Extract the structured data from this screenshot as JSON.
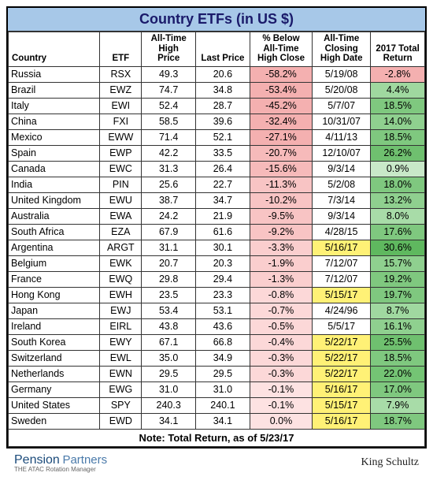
{
  "title": "Country ETFs (in US $)",
  "columns": [
    "Country",
    "ETF",
    "All-Time High Price",
    "Last Price",
    "% Below All-Time High Close",
    "All-Time Closing High Date",
    "2017 Total Return"
  ],
  "col_widths": [
    "22%",
    "10%",
    "13%",
    "13%",
    "15%",
    "14%",
    "13%"
  ],
  "header_bg": "#ffffff",
  "rows": [
    {
      "country": "Russia",
      "etf": "RSX",
      "high": "49.3",
      "last": "20.6",
      "pct": "-58.2%",
      "pct_bg": "#f4b0b0",
      "date": "5/19/08",
      "date_bg": "#ffffff",
      "ret": "-2.8%",
      "ret_bg": "#f4b0b0"
    },
    {
      "country": "Brazil",
      "etf": "EWZ",
      "high": "74.7",
      "last": "34.8",
      "pct": "-53.4%",
      "pct_bg": "#f4b0b0",
      "date": "5/20/08",
      "date_bg": "#ffffff",
      "ret": "4.4%",
      "ret_bg": "#9fd89f"
    },
    {
      "country": "Italy",
      "etf": "EWI",
      "high": "52.4",
      "last": "28.7",
      "pct": "-45.2%",
      "pct_bg": "#f4b0b0",
      "date": "5/7/07",
      "date_bg": "#ffffff",
      "ret": "18.5%",
      "ret_bg": "#7fc87f"
    },
    {
      "country": "China",
      "etf": "FXI",
      "high": "58.5",
      "last": "39.6",
      "pct": "-32.4%",
      "pct_bg": "#f4b0b0",
      "date": "10/31/07",
      "date_bg": "#ffffff",
      "ret": "14.0%",
      "ret_bg": "#8fd08f"
    },
    {
      "country": "Mexico",
      "etf": "EWW",
      "high": "71.4",
      "last": "52.1",
      "pct": "-27.1%",
      "pct_bg": "#f4b0b0",
      "date": "4/11/13",
      "date_bg": "#ffffff",
      "ret": "18.5%",
      "ret_bg": "#7fc87f"
    },
    {
      "country": "Spain",
      "etf": "EWP",
      "high": "42.2",
      "last": "33.5",
      "pct": "-20.7%",
      "pct_bg": "#f6baba",
      "date": "12/10/07",
      "date_bg": "#ffffff",
      "ret": "26.2%",
      "ret_bg": "#6fc06f"
    },
    {
      "country": "Canada",
      "etf": "EWC",
      "high": "31.3",
      "last": "26.4",
      "pct": "-15.6%",
      "pct_bg": "#f6baba",
      "date": "9/3/14",
      "date_bg": "#ffffff",
      "ret": "0.9%",
      "ret_bg": "#c8e8c8"
    },
    {
      "country": "India",
      "etf": "PIN",
      "high": "25.6",
      "last": "22.7",
      "pct": "-11.3%",
      "pct_bg": "#f8c4c4",
      "date": "5/2/08",
      "date_bg": "#ffffff",
      "ret": "18.0%",
      "ret_bg": "#7fc87f"
    },
    {
      "country": "United Kingdom",
      "etf": "EWU",
      "high": "38.7",
      "last": "34.7",
      "pct": "-10.2%",
      "pct_bg": "#f8c4c4",
      "date": "7/3/14",
      "date_bg": "#ffffff",
      "ret": "13.2%",
      "ret_bg": "#8fd08f"
    },
    {
      "country": "Australia",
      "etf": "EWA",
      "high": "24.2",
      "last": "21.9",
      "pct": "-9.5%",
      "pct_bg": "#f8c4c4",
      "date": "9/3/14",
      "date_bg": "#ffffff",
      "ret": "8.0%",
      "ret_bg": "#a8dca8"
    },
    {
      "country": "South Africa",
      "etf": "EZA",
      "high": "67.9",
      "last": "61.6",
      "pct": "-9.2%",
      "pct_bg": "#f8c4c4",
      "date": "4/28/15",
      "date_bg": "#ffffff",
      "ret": "17.6%",
      "ret_bg": "#7fc87f"
    },
    {
      "country": "Argentina",
      "etf": "ARGT",
      "high": "31.1",
      "last": "30.1",
      "pct": "-3.3%",
      "pct_bg": "#facece",
      "date": "5/16/17",
      "date_bg": "#fff176",
      "ret": "30.6%",
      "ret_bg": "#5fb85f"
    },
    {
      "country": "Belgium",
      "etf": "EWK",
      "high": "20.7",
      "last": "20.3",
      "pct": "-1.9%",
      "pct_bg": "#facece",
      "date": "7/12/07",
      "date_bg": "#ffffff",
      "ret": "15.7%",
      "ret_bg": "#8fd08f"
    },
    {
      "country": "France",
      "etf": "EWQ",
      "high": "29.8",
      "last": "29.4",
      "pct": "-1.3%",
      "pct_bg": "#facece",
      "date": "7/12/07",
      "date_bg": "#ffffff",
      "ret": "19.2%",
      "ret_bg": "#7fc87f"
    },
    {
      "country": "Hong Kong",
      "etf": "EWH",
      "high": "23.5",
      "last": "23.3",
      "pct": "-0.8%",
      "pct_bg": "#fcd8d8",
      "date": "5/15/17",
      "date_bg": "#fff176",
      "ret": "19.7%",
      "ret_bg": "#7fc87f"
    },
    {
      "country": "Japan",
      "etf": "EWJ",
      "high": "53.4",
      "last": "53.1",
      "pct": "-0.7%",
      "pct_bg": "#fcd8d8",
      "date": "4/24/96",
      "date_bg": "#ffffff",
      "ret": "8.7%",
      "ret_bg": "#a0d8a0"
    },
    {
      "country": "Ireland",
      "etf": "EIRL",
      "high": "43.8",
      "last": "43.6",
      "pct": "-0.5%",
      "pct_bg": "#fcd8d8",
      "date": "5/5/17",
      "date_bg": "#ffffff",
      "ret": "16.1%",
      "ret_bg": "#8fd08f"
    },
    {
      "country": "South Korea",
      "etf": "EWY",
      "high": "67.1",
      "last": "66.8",
      "pct": "-0.4%",
      "pct_bg": "#fcd8d8",
      "date": "5/22/17",
      "date_bg": "#fff176",
      "ret": "25.5%",
      "ret_bg": "#6fc06f"
    },
    {
      "country": "Switzerland",
      "etf": "EWL",
      "high": "35.0",
      "last": "34.9",
      "pct": "-0.3%",
      "pct_bg": "#fcd8d8",
      "date": "5/22/17",
      "date_bg": "#fff176",
      "ret": "18.5%",
      "ret_bg": "#7fc87f"
    },
    {
      "country": "Netherlands",
      "etf": "EWN",
      "high": "29.5",
      "last": "29.5",
      "pct": "-0.3%",
      "pct_bg": "#fcd8d8",
      "date": "5/22/17",
      "date_bg": "#fff176",
      "ret": "22.0%",
      "ret_bg": "#74c474"
    },
    {
      "country": "Germany",
      "etf": "EWG",
      "high": "31.0",
      "last": "31.0",
      "pct": "-0.1%",
      "pct_bg": "#fde2e2",
      "date": "5/16/17",
      "date_bg": "#fff176",
      "ret": "17.0%",
      "ret_bg": "#7fc87f"
    },
    {
      "country": "United States",
      "etf": "SPY",
      "high": "240.3",
      "last": "240.1",
      "pct": "-0.1%",
      "pct_bg": "#fde2e2",
      "date": "5/15/17",
      "date_bg": "#fff176",
      "ret": "7.9%",
      "ret_bg": "#a8dca8"
    },
    {
      "country": "Sweden",
      "etf": "EWD",
      "high": "34.1",
      "last": "34.1",
      "pct": "0.0%",
      "pct_bg": "#fde2e2",
      "date": "5/16/17",
      "date_bg": "#fff176",
      "ret": "18.7%",
      "ret_bg": "#7fc87f"
    }
  ],
  "note": "Note: Total Return, as of 5/23/17",
  "footer_left_1": "Pension",
  "footer_left_2": "Partners",
  "footer_left_sub": "THE ATAC Rotation Manager",
  "footer_right": "King Schultz"
}
